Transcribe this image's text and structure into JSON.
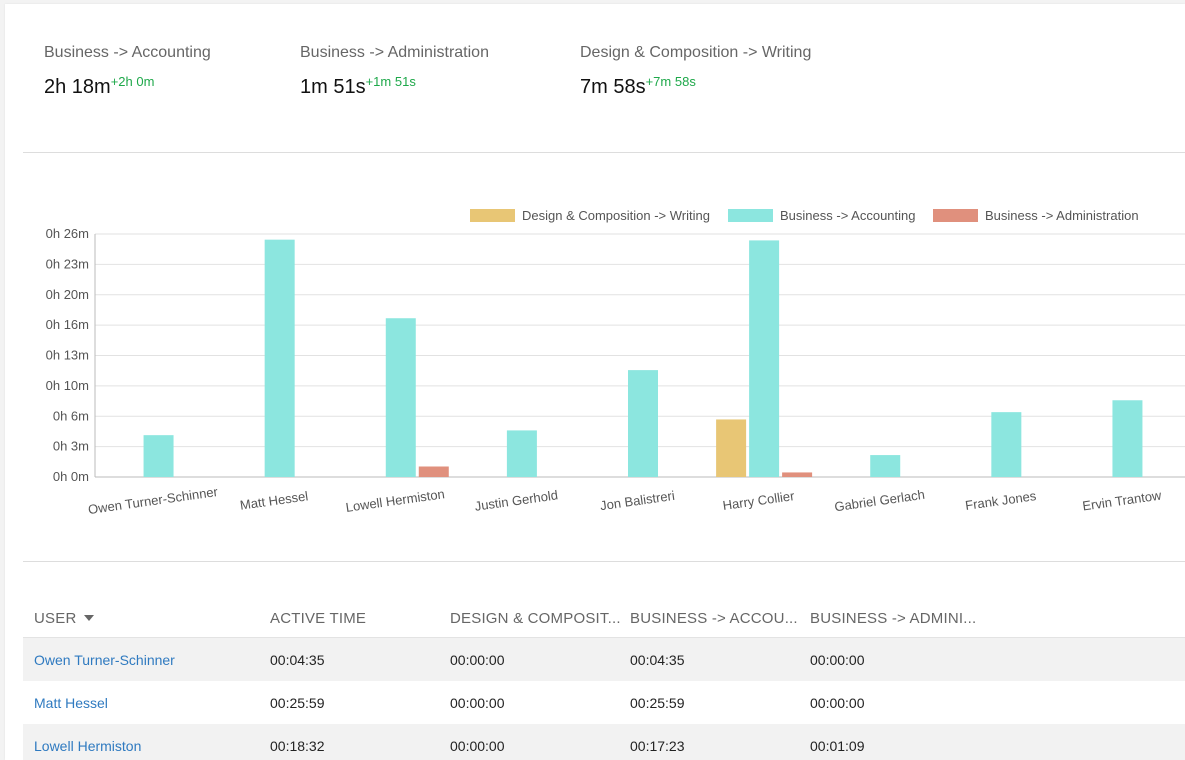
{
  "summary": [
    {
      "label": "Business -> Accounting",
      "value": "2h 18m",
      "delta": "+2h 0m"
    },
    {
      "label": "Business -> Administration",
      "value": "1m 51s",
      "delta": "+1m 51s"
    },
    {
      "label": "Design & Composition -> Writing",
      "value": "7m 58s",
      "delta": "+7m 58s"
    }
  ],
  "colors": {
    "writing": "#e8c675",
    "accounting": "#8ce6df",
    "administration": "#e0907d",
    "positive_delta": "#1ea84a",
    "link": "#2f7ac0"
  },
  "chart_data": {
    "type": "bar",
    "categories": [
      "Owen Turner-Schinner",
      "Matt Hessel",
      "Lowell Hermiston",
      "Justin Gerhold",
      "Jon Balistreri",
      "Harry Collier",
      "Gabriel Gerlach",
      "Frank Jones",
      "Ervin Trantow"
    ],
    "series": [
      {
        "name": "Design & Composition -> Writing",
        "color": "#e8c675",
        "values": [
          0,
          0,
          0,
          0,
          0,
          6.3,
          0,
          0,
          0
        ]
      },
      {
        "name": "Business -> Accounting",
        "color": "#8ce6df",
        "values": [
          4.58,
          25.98,
          17.38,
          5.1,
          11.7,
          25.9,
          2.4,
          7.1,
          8.4
        ]
      },
      {
        "name": "Business -> Administration",
        "color": "#e0907d",
        "values": [
          0,
          0,
          1.15,
          0,
          0,
          0.5,
          0,
          0,
          0
        ]
      }
    ],
    "yticks": [
      "0h 0m",
      "0h 3m",
      "0h 6m",
      "0h 10m",
      "0h 13m",
      "0h 16m",
      "0h 20m",
      "0h 23m",
      "0h 26m"
    ],
    "ylim": [
      0,
      26.6
    ],
    "ylabel": "",
    "xlabel": "",
    "grid": true,
    "legend": "top-right"
  },
  "table": {
    "headers": [
      "USER",
      "ACTIVE TIME",
      "DESIGN & COMPOSIT...",
      "BUSINESS -> ACCOU...",
      "BUSINESS -> ADMINI..."
    ],
    "rows": [
      [
        "Owen Turner-Schinner",
        "00:04:35",
        "00:00:00",
        "00:04:35",
        "00:00:00"
      ],
      [
        "Matt Hessel",
        "00:25:59",
        "00:00:00",
        "00:25:59",
        "00:00:00"
      ],
      [
        "Lowell Hermiston",
        "00:18:32",
        "00:00:00",
        "00:17:23",
        "00:01:09"
      ]
    ]
  }
}
